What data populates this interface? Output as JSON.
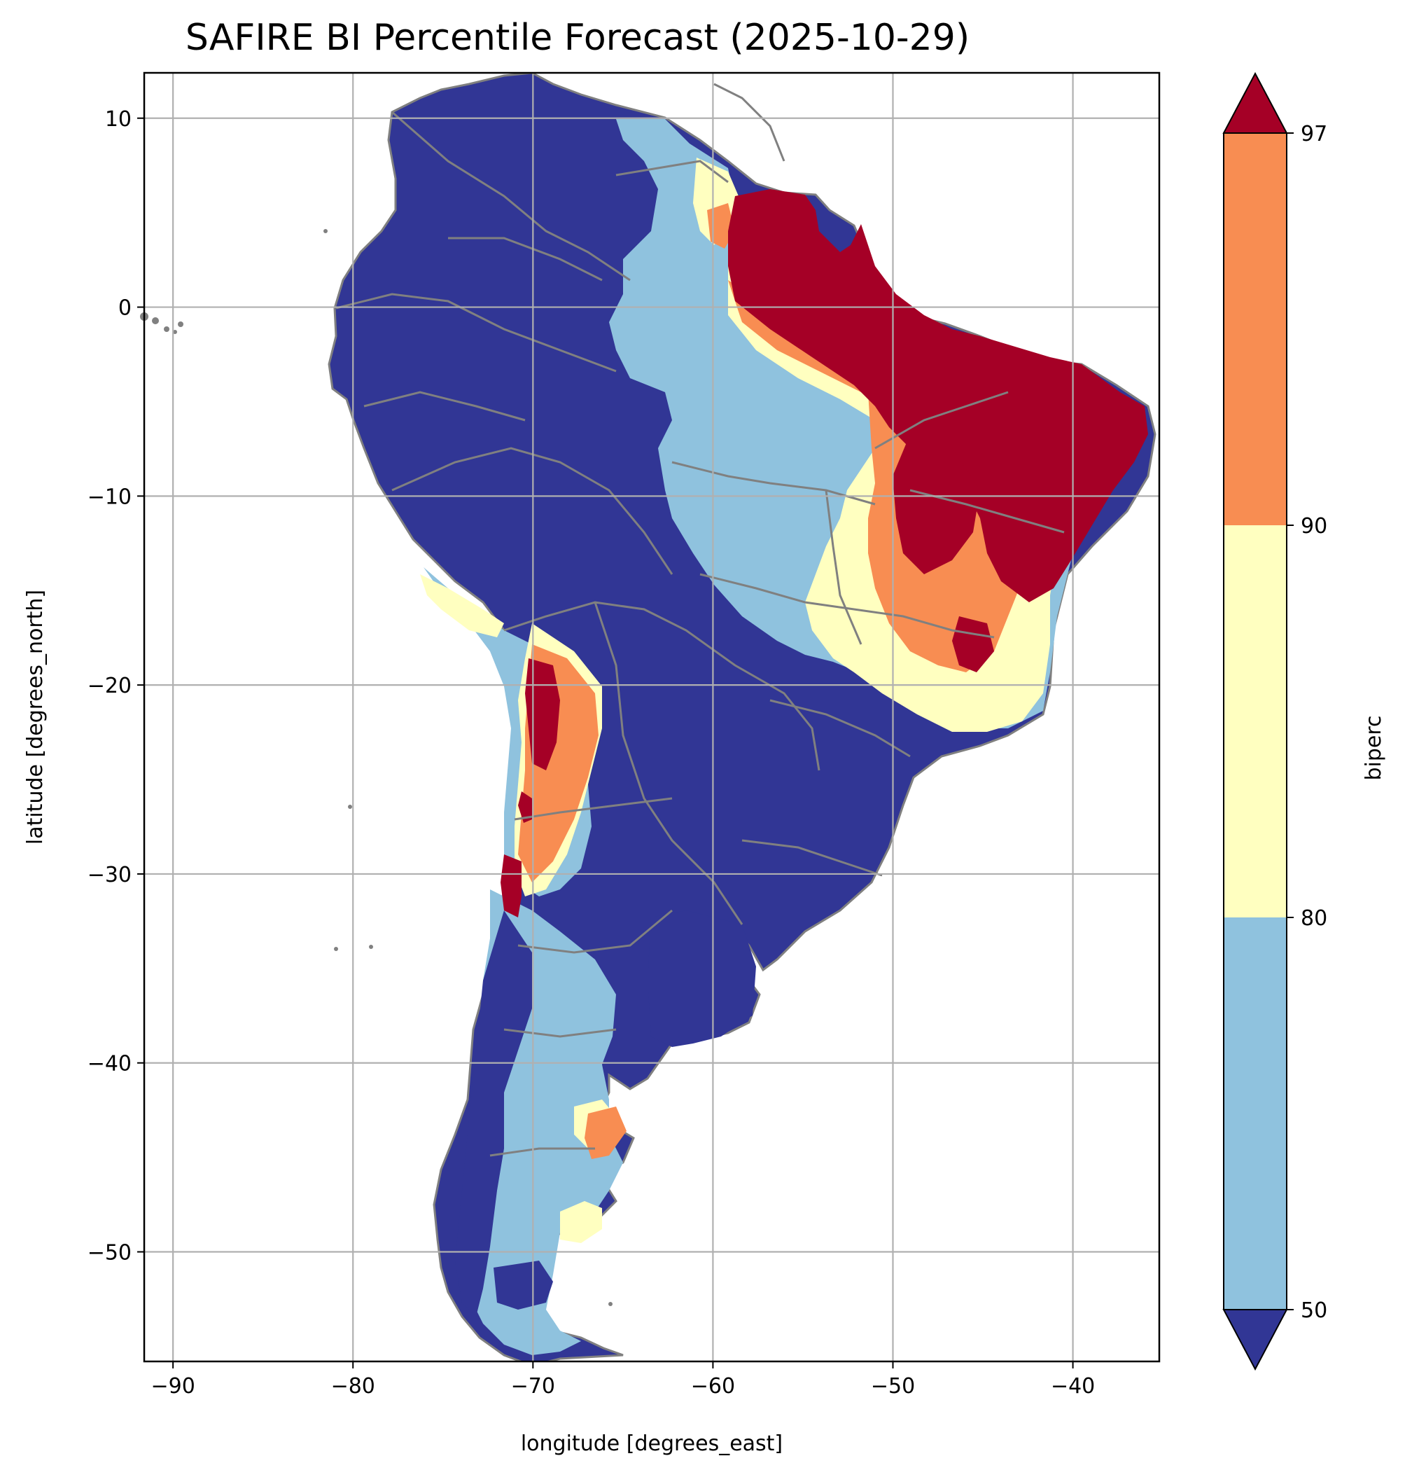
{
  "title": "SAFIRE BI Percentile Forecast (2025-10-29)",
  "map": {
    "region": "South America",
    "xlabel": "longitude [degrees_east]",
    "ylabel": "latitude [degrees_north]",
    "xlim": [
      -91.6,
      -35.2
    ],
    "ylim": [
      -55.8,
      12.4
    ],
    "x_ticks": [
      -90,
      -80,
      -70,
      -60,
      -50,
      -40
    ],
    "y_ticks": [
      10,
      0,
      -10,
      -20,
      -30,
      -40,
      -50
    ],
    "x_tick_labels": [
      "−90",
      "−80",
      "−70",
      "−60",
      "−50",
      "−40"
    ],
    "y_tick_labels": [
      "10",
      "0",
      "−10",
      "−20",
      "−30",
      "−40",
      "−50"
    ],
    "grid": true,
    "border_color": "#808080"
  },
  "colorbar": {
    "label": "biperc",
    "tick_labels": [
      "50",
      "80",
      "90",
      "97"
    ],
    "extend": "both",
    "bins": [
      {
        "range": "<50",
        "color": "#313695"
      },
      {
        "range": "50-80",
        "color": "#8fc2de"
      },
      {
        "range": "80-90",
        "color": "#ffffc0"
      },
      {
        "range": "90-97",
        "color": "#f88d52"
      },
      {
        "range": ">97",
        "color": "#a50026"
      }
    ]
  }
}
